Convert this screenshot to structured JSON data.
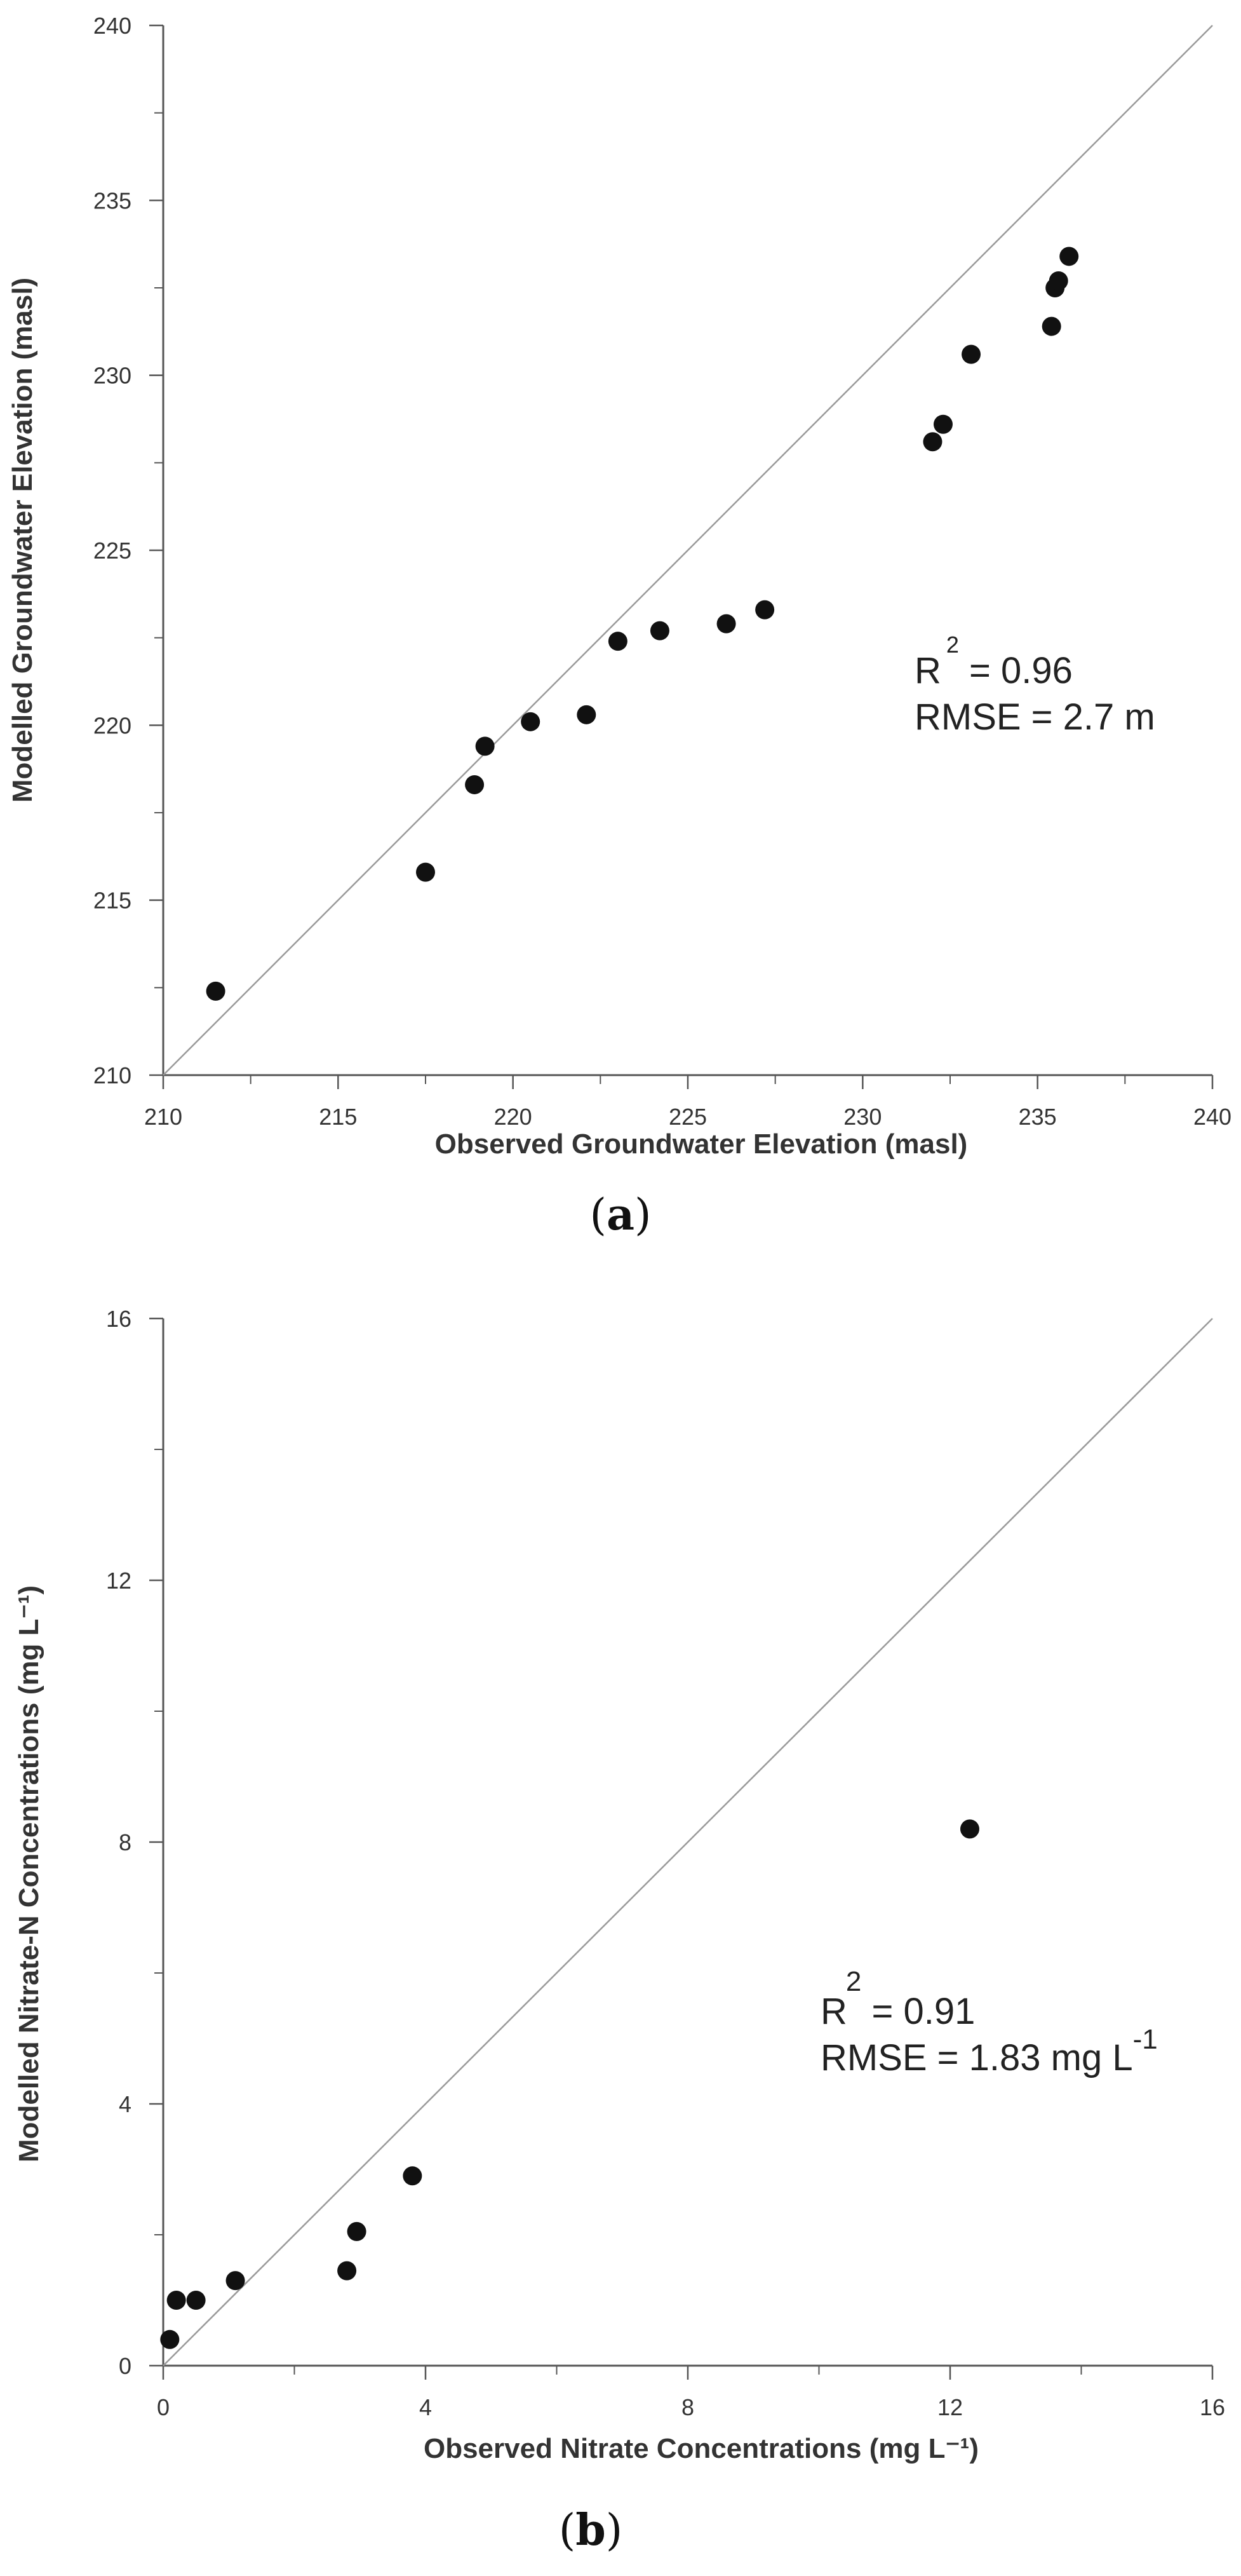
{
  "chart_data": [
    {
      "type": "scatter",
      "panel": "a",
      "caption_prefix": "(",
      "caption_letter": "a",
      "caption_suffix": ")",
      "title": "",
      "xlabel": "Observed Groundwater Elevation (masl)",
      "ylabel": "Modelled Groundwater Elevation (masl)",
      "xlim": [
        210,
        240
      ],
      "ylim": [
        210,
        240
      ],
      "xticks": [
        "210",
        "215",
        "220",
        "225",
        "230",
        "235",
        "240"
      ],
      "yticks": [
        "210",
        "215",
        "220",
        "225",
        "230",
        "235",
        "240"
      ],
      "one_to_one_line": true,
      "annotation": {
        "r_label": "R",
        "r_sup": "2",
        "r_value": " = 0.96",
        "rmse": "RMSE = 2.7 m"
      },
      "points": [
        {
          "x": 211.5,
          "y": 212.4
        },
        {
          "x": 217.5,
          "y": 215.8
        },
        {
          "x": 218.9,
          "y": 218.3
        },
        {
          "x": 219.2,
          "y": 219.4
        },
        {
          "x": 220.5,
          "y": 220.1
        },
        {
          "x": 222.1,
          "y": 220.3
        },
        {
          "x": 223.0,
          "y": 222.4
        },
        {
          "x": 224.2,
          "y": 222.7
        },
        {
          "x": 226.1,
          "y": 222.9
        },
        {
          "x": 227.2,
          "y": 223.3
        },
        {
          "x": 232.0,
          "y": 228.1
        },
        {
          "x": 232.3,
          "y": 228.6
        },
        {
          "x": 233.1,
          "y": 230.6
        },
        {
          "x": 235.4,
          "y": 231.4
        },
        {
          "x": 235.5,
          "y": 232.5
        },
        {
          "x": 235.6,
          "y": 232.7
        },
        {
          "x": 235.9,
          "y": 233.4
        }
      ]
    },
    {
      "type": "scatter",
      "panel": "b",
      "caption_prefix": "(",
      "caption_letter": "b",
      "caption_suffix": ")",
      "title": "",
      "xlabel": "Observed Nitrate Concentrations (mg L⁻¹)",
      "ylabel": "Modelled Nitrate-N Concentrations (mg L⁻¹)",
      "xlim": [
        0,
        16
      ],
      "ylim": [
        0,
        16
      ],
      "xticks": [
        "0",
        "4",
        "8",
        "12",
        "16"
      ],
      "yticks": [
        "0",
        "4",
        "8",
        "12",
        "16"
      ],
      "one_to_one_line": true,
      "annotation": {
        "r_label": "R",
        "r_sup": "2",
        "r_value": " = 0.91",
        "rmse": "RMSE = 1.83 mg L",
        "rmse_sup": "-1"
      },
      "points": [
        {
          "x": 0.1,
          "y": 0.4
        },
        {
          "x": 0.2,
          "y": 1.0
        },
        {
          "x": 0.5,
          "y": 1.0
        },
        {
          "x": 1.1,
          "y": 1.3
        },
        {
          "x": 2.8,
          "y": 1.45
        },
        {
          "x": 2.95,
          "y": 2.05
        },
        {
          "x": 3.8,
          "y": 2.9
        },
        {
          "x": 12.3,
          "y": 8.2
        }
      ]
    }
  ],
  "colors": {
    "point": "#111111",
    "axis": "#555555",
    "diagonal": "#9a9a9a"
  }
}
